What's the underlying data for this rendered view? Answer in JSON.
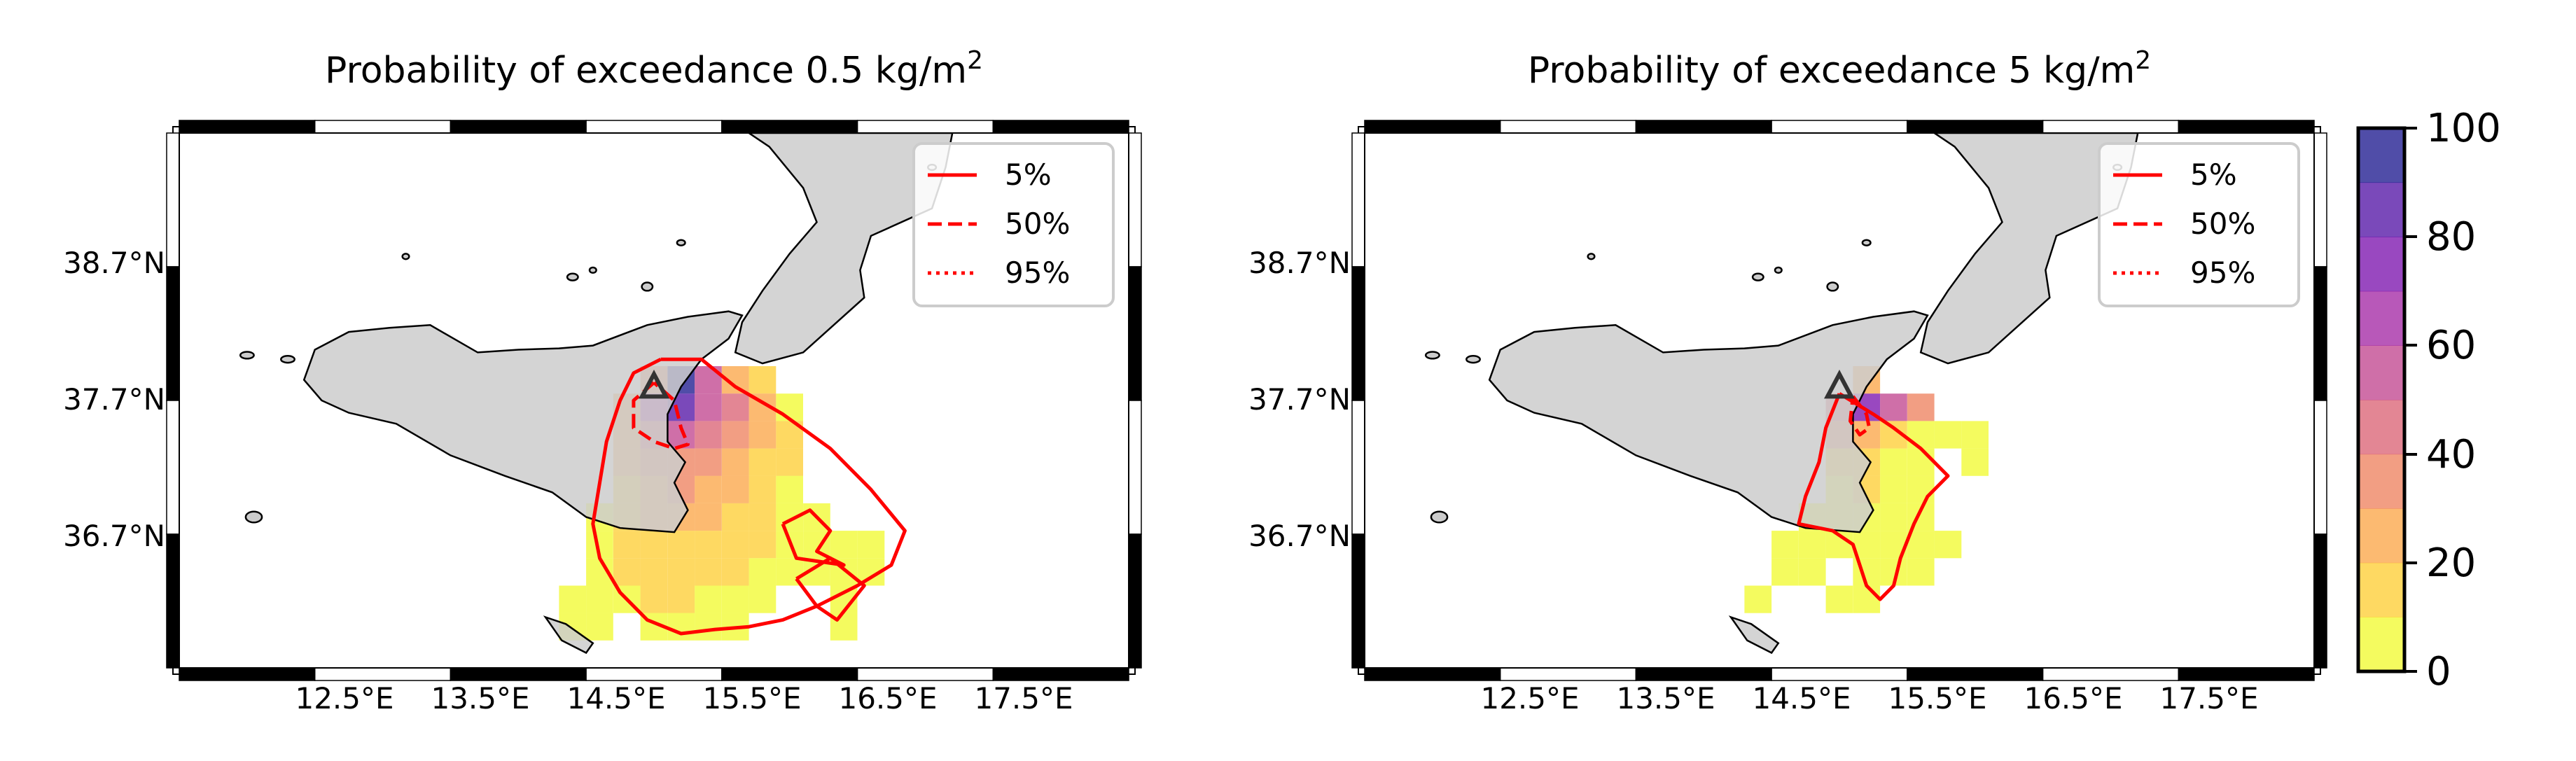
{
  "chart_data": {
    "type": "heatmap",
    "panels": [
      {
        "title": "Probability of exceedance 0.5 kg/m",
        "title_sup": "2",
        "xticks": [
          "12.5°E",
          "13.5°E",
          "14.5°E",
          "15.5°E",
          "16.5°E",
          "17.5°E"
        ],
        "yticks": [
          "36.7°N",
          "37.7°N",
          "38.7°N"
        ],
        "legend": [
          "5%",
          "50%",
          "95%"
        ],
        "cells": [
          {
            "lon": 15.0,
            "lat": 37.8,
            "p": 35
          },
          {
            "lon": 15.2,
            "lat": 37.8,
            "p": 90
          },
          {
            "lon": 15.4,
            "lat": 37.8,
            "p": 50
          },
          {
            "lon": 15.6,
            "lat": 37.8,
            "p": 25
          },
          {
            "lon": 15.8,
            "lat": 37.8,
            "p": 12
          },
          {
            "lon": 14.8,
            "lat": 37.6,
            "p": 22
          },
          {
            "lon": 15.0,
            "lat": 37.6,
            "p": 60
          },
          {
            "lon": 15.2,
            "lat": 37.6,
            "p": 82
          },
          {
            "lon": 15.4,
            "lat": 37.6,
            "p": 55
          },
          {
            "lon": 15.6,
            "lat": 37.6,
            "p": 40
          },
          {
            "lon": 15.8,
            "lat": 37.6,
            "p": 22
          },
          {
            "lon": 16.0,
            "lat": 37.6,
            "p": 8
          },
          {
            "lon": 14.8,
            "lat": 37.4,
            "p": 25
          },
          {
            "lon": 15.0,
            "lat": 37.4,
            "p": 40
          },
          {
            "lon": 15.2,
            "lat": 37.4,
            "p": 55
          },
          {
            "lon": 15.4,
            "lat": 37.4,
            "p": 45
          },
          {
            "lon": 15.6,
            "lat": 37.4,
            "p": 30
          },
          {
            "lon": 15.8,
            "lat": 37.4,
            "p": 20
          },
          {
            "lon": 16.0,
            "lat": 37.4,
            "p": 10
          },
          {
            "lon": 14.8,
            "lat": 37.2,
            "p": 22
          },
          {
            "lon": 15.0,
            "lat": 37.2,
            "p": 35
          },
          {
            "lon": 15.2,
            "lat": 37.2,
            "p": 38
          },
          {
            "lon": 15.4,
            "lat": 37.2,
            "p": 32
          },
          {
            "lon": 15.6,
            "lat": 37.2,
            "p": 25
          },
          {
            "lon": 15.8,
            "lat": 37.2,
            "p": 18
          },
          {
            "lon": 16.0,
            "lat": 37.2,
            "p": 10
          },
          {
            "lon": 14.8,
            "lat": 37.0,
            "p": 18
          },
          {
            "lon": 15.0,
            "lat": 37.0,
            "p": 28
          },
          {
            "lon": 15.2,
            "lat": 37.0,
            "p": 30
          },
          {
            "lon": 15.4,
            "lat": 37.0,
            "p": 28
          },
          {
            "lon": 15.6,
            "lat": 37.0,
            "p": 22
          },
          {
            "lon": 15.8,
            "lat": 37.0,
            "p": 15
          },
          {
            "lon": 16.0,
            "lat": 37.0,
            "p": 8
          },
          {
            "lon": 14.6,
            "lat": 36.8,
            "p": 8
          },
          {
            "lon": 14.8,
            "lat": 36.8,
            "p": 15
          },
          {
            "lon": 15.0,
            "lat": 36.8,
            "p": 20
          },
          {
            "lon": 15.2,
            "lat": 36.8,
            "p": 25
          },
          {
            "lon": 15.4,
            "lat": 36.8,
            "p": 22
          },
          {
            "lon": 15.6,
            "lat": 36.8,
            "p": 18
          },
          {
            "lon": 15.8,
            "lat": 36.8,
            "p": 12
          },
          {
            "lon": 16.0,
            "lat": 36.8,
            "p": 8
          },
          {
            "lon": 16.2,
            "lat": 36.8,
            "p": 5
          },
          {
            "lon": 14.6,
            "lat": 36.6,
            "p": 8
          },
          {
            "lon": 14.8,
            "lat": 36.6,
            "p": 12
          },
          {
            "lon": 15.0,
            "lat": 36.6,
            "p": 15
          },
          {
            "lon": 15.2,
            "lat": 36.6,
            "p": 18
          },
          {
            "lon": 15.4,
            "lat": 36.6,
            "p": 18
          },
          {
            "lon": 15.6,
            "lat": 36.6,
            "p": 14
          },
          {
            "lon": 15.8,
            "lat": 36.6,
            "p": 10
          },
          {
            "lon": 16.0,
            "lat": 36.6,
            "p": 8
          },
          {
            "lon": 16.2,
            "lat": 36.6,
            "p": 6
          },
          {
            "lon": 16.4,
            "lat": 36.6,
            "p": 5
          },
          {
            "lon": 16.6,
            "lat": 36.6,
            "p": 4
          },
          {
            "lon": 14.6,
            "lat": 36.4,
            "p": 6
          },
          {
            "lon": 14.8,
            "lat": 36.4,
            "p": 10
          },
          {
            "lon": 15.0,
            "lat": 36.4,
            "p": 14
          },
          {
            "lon": 15.2,
            "lat": 36.4,
            "p": 16
          },
          {
            "lon": 15.4,
            "lat": 36.4,
            "p": 15
          },
          {
            "lon": 15.6,
            "lat": 36.4,
            "p": 12
          },
          {
            "lon": 15.8,
            "lat": 36.4,
            "p": 9
          },
          {
            "lon": 16.0,
            "lat": 36.4,
            "p": 7
          },
          {
            "lon": 16.2,
            "lat": 36.4,
            "p": 6
          },
          {
            "lon": 16.4,
            "lat": 36.4,
            "p": 4
          },
          {
            "lon": 16.6,
            "lat": 36.4,
            "p": 4
          },
          {
            "lon": 14.4,
            "lat": 36.2,
            "p": 4
          },
          {
            "lon": 14.6,
            "lat": 36.2,
            "p": 6
          },
          {
            "lon": 14.8,
            "lat": 36.2,
            "p": 8
          },
          {
            "lon": 15.0,
            "lat": 36.2,
            "p": 10
          },
          {
            "lon": 15.2,
            "lat": 36.2,
            "p": 10
          },
          {
            "lon": 15.4,
            "lat": 36.2,
            "p": 9
          },
          {
            "lon": 15.6,
            "lat": 36.2,
            "p": 7
          },
          {
            "lon": 15.8,
            "lat": 36.2,
            "p": 5
          },
          {
            "lon": 16.4,
            "lat": 36.2,
            "p": 3
          },
          {
            "lon": 14.4,
            "lat": 36.0,
            "p": 3
          },
          {
            "lon": 14.6,
            "lat": 36.0,
            "p": 4
          },
          {
            "lon": 15.0,
            "lat": 36.0,
            "p": 5
          },
          {
            "lon": 15.2,
            "lat": 36.0,
            "p": 5
          },
          {
            "lon": 15.4,
            "lat": 36.0,
            "p": 4
          },
          {
            "lon": 15.6,
            "lat": 36.0,
            "p": 3
          },
          {
            "lon": 16.4,
            "lat": 36.0,
            "p": 3
          }
        ],
        "contours": {
          "5%": [
            [
              [
                15.05,
                37.95
              ],
              [
                15.35,
                37.95
              ],
              [
                15.6,
                37.75
              ],
              [
                15.95,
                37.55
              ],
              [
                16.3,
                37.3
              ],
              [
                16.6,
                37.0
              ],
              [
                16.85,
                36.7
              ],
              [
                16.75,
                36.45
              ],
              [
                16.5,
                36.3
              ],
              [
                16.2,
                36.15
              ],
              [
                15.95,
                36.05
              ],
              [
                15.7,
                36.0
              ],
              [
                15.45,
                35.98
              ],
              [
                15.2,
                35.95
              ],
              [
                14.95,
                36.05
              ],
              [
                14.75,
                36.25
              ],
              [
                14.6,
                36.5
              ],
              [
                14.55,
                36.75
              ],
              [
                14.6,
                37.05
              ],
              [
                14.65,
                37.35
              ],
              [
                14.75,
                37.65
              ],
              [
                14.85,
                37.85
              ],
              [
                15.05,
                37.95
              ]
            ],
            [
              [
                15.95,
                36.75
              ],
              [
                16.15,
                36.85
              ],
              [
                16.3,
                36.7
              ],
              [
                16.2,
                36.55
              ],
              [
                16.4,
                36.45
              ],
              [
                16.05,
                36.5
              ],
              [
                15.95,
                36.75
              ]
            ],
            [
              [
                16.05,
                36.35
              ],
              [
                16.3,
                36.5
              ],
              [
                16.55,
                36.3
              ],
              [
                16.35,
                36.05
              ],
              [
                16.2,
                36.15
              ],
              [
                16.05,
                36.35
              ]
            ]
          ],
          "50%": [
            [
              [
                15.0,
                37.78
              ],
              [
                14.85,
                37.65
              ],
              [
                14.85,
                37.45
              ],
              [
                15.0,
                37.35
              ],
              [
                15.15,
                37.3
              ],
              [
                15.25,
                37.33
              ],
              [
                15.2,
                37.45
              ],
              [
                15.15,
                37.65
              ],
              [
                15.0,
                37.78
              ]
            ]
          ],
          "95%": []
        }
      },
      {
        "title": "Probability of exceedance 5 kg/m",
        "title_sup": "2",
        "xticks": [
          "12.5°E",
          "13.5°E",
          "14.5°E",
          "15.5°E",
          "16.5°E",
          "17.5°E"
        ],
        "yticks": [
          "36.7°N",
          "37.7°N",
          "38.7°N"
        ],
        "legend": [
          "5%",
          "50%",
          "95%"
        ],
        "cells": [
          {
            "lon": 15.2,
            "lat": 37.8,
            "p": 22
          },
          {
            "lon": 15.0,
            "lat": 37.6,
            "p": 40
          },
          {
            "lon": 15.2,
            "lat": 37.6,
            "p": 75
          },
          {
            "lon": 15.4,
            "lat": 37.6,
            "p": 50
          },
          {
            "lon": 15.6,
            "lat": 37.6,
            "p": 35
          },
          {
            "lon": 15.0,
            "lat": 37.4,
            "p": 30
          },
          {
            "lon": 15.2,
            "lat": 37.4,
            "p": 25
          },
          {
            "lon": 15.4,
            "lat": 37.4,
            "p": 12
          },
          {
            "lon": 15.6,
            "lat": 37.4,
            "p": 8
          },
          {
            "lon": 15.8,
            "lat": 37.4,
            "p": 5
          },
          {
            "lon": 16.0,
            "lat": 37.4,
            "p": 3
          },
          {
            "lon": 15.0,
            "lat": 37.2,
            "p": 12
          },
          {
            "lon": 15.2,
            "lat": 37.2,
            "p": 15
          },
          {
            "lon": 15.4,
            "lat": 37.2,
            "p": 8
          },
          {
            "lon": 15.6,
            "lat": 37.2,
            "p": 5
          },
          {
            "lon": 16.0,
            "lat": 37.2,
            "p": 2
          },
          {
            "lon": 15.0,
            "lat": 37.0,
            "p": 8
          },
          {
            "lon": 15.2,
            "lat": 37.0,
            "p": 12
          },
          {
            "lon": 15.4,
            "lat": 37.0,
            "p": 6
          },
          {
            "lon": 15.6,
            "lat": 37.0,
            "p": 4
          },
          {
            "lon": 14.8,
            "lat": 36.8,
            "p": 4
          },
          {
            "lon": 15.0,
            "lat": 36.8,
            "p": 8
          },
          {
            "lon": 15.2,
            "lat": 36.8,
            "p": 6
          },
          {
            "lon": 15.4,
            "lat": 36.8,
            "p": 5
          },
          {
            "lon": 15.6,
            "lat": 36.8,
            "p": 3
          },
          {
            "lon": 14.6,
            "lat": 36.6,
            "p": 3
          },
          {
            "lon": 14.8,
            "lat": 36.6,
            "p": 5
          },
          {
            "lon": 15.0,
            "lat": 36.6,
            "p": 4
          },
          {
            "lon": 15.2,
            "lat": 36.6,
            "p": 5
          },
          {
            "lon": 15.4,
            "lat": 36.6,
            "p": 4
          },
          {
            "lon": 15.6,
            "lat": 36.6,
            "p": 3
          },
          {
            "lon": 15.8,
            "lat": 36.6,
            "p": 2
          },
          {
            "lon": 14.6,
            "lat": 36.4,
            "p": 2
          },
          {
            "lon": 14.8,
            "lat": 36.4,
            "p": 3
          },
          {
            "lon": 15.2,
            "lat": 36.4,
            "p": 4
          },
          {
            "lon": 15.4,
            "lat": 36.4,
            "p": 3
          },
          {
            "lon": 15.6,
            "lat": 36.4,
            "p": 2
          },
          {
            "lon": 14.4,
            "lat": 36.2,
            "p": 2
          },
          {
            "lon": 15.0,
            "lat": 36.2,
            "p": 3
          },
          {
            "lon": 15.2,
            "lat": 36.2,
            "p": 3
          }
        ],
        "contours": {
          "5%": [
            [
              [
                15.0,
                37.7
              ],
              [
                15.25,
                37.55
              ],
              [
                15.4,
                37.45
              ],
              [
                15.6,
                37.3
              ],
              [
                15.8,
                37.1
              ],
              [
                15.65,
                36.95
              ],
              [
                15.55,
                36.75
              ],
              [
                15.45,
                36.5
              ],
              [
                15.4,
                36.3
              ],
              [
                15.3,
                36.2
              ],
              [
                15.2,
                36.3
              ],
              [
                15.15,
                36.45
              ],
              [
                15.1,
                36.6
              ],
              [
                14.95,
                36.7
              ],
              [
                14.7,
                36.75
              ],
              [
                14.75,
                36.95
              ],
              [
                14.85,
                37.2
              ],
              [
                14.9,
                37.45
              ],
              [
                15.0,
                37.7
              ]
            ]
          ],
          "50%": [
            [
              [
                15.1,
                37.68
              ],
              [
                15.2,
                37.55
              ],
              [
                15.22,
                37.45
              ],
              [
                15.15,
                37.4
              ],
              [
                15.08,
                37.5
              ],
              [
                15.1,
                37.68
              ]
            ]
          ],
          "95%": []
        }
      }
    ],
    "colorbar": {
      "ticks": [
        "0",
        "20",
        "40",
        "60",
        "80",
        "100"
      ],
      "range": [
        0,
        100
      ],
      "levels": 10
    },
    "volcano": {
      "lon": 15.0,
      "lat": 37.75
    },
    "map_extent": {
      "lon": [
        11.5,
        18.5
      ],
      "lat": [
        35.7,
        39.6
      ]
    },
    "colors": {
      "land": "#cccccc",
      "contour": "#ff0000",
      "colormap": [
        "#f0f921",
        "#fdca26",
        "#fb9f3a",
        "#ed7953",
        "#d8576b",
        "#bd3786",
        "#9c179e",
        "#7201a8",
        "#46039f",
        "#0d0887"
      ]
    }
  }
}
